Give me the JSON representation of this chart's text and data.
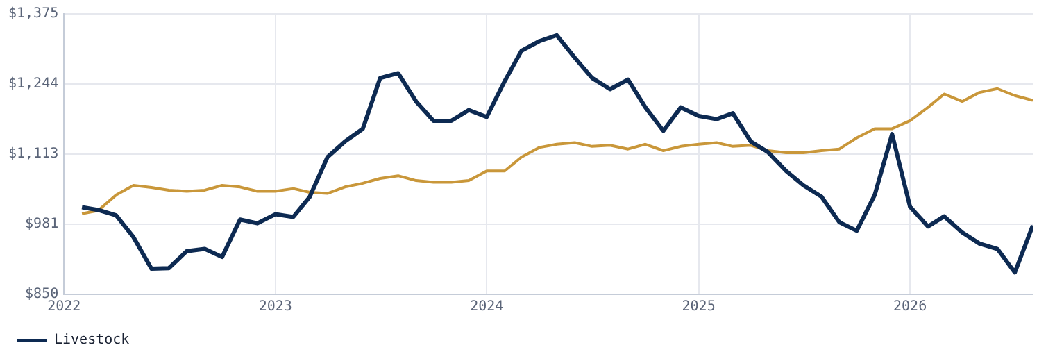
{
  "chart_data": {
    "type": "line",
    "x": [
      "2022-02",
      "2022-03",
      "2022-04",
      "2022-05",
      "2022-06",
      "2022-07",
      "2022-08",
      "2022-09",
      "2022-10",
      "2022-11",
      "2022-12",
      "2023-01",
      "2023-02",
      "2023-03",
      "2023-04",
      "2023-05",
      "2023-06",
      "2023-07",
      "2023-08",
      "2023-09",
      "2023-10",
      "2023-11",
      "2023-12",
      "2024-01",
      "2024-02",
      "2024-03",
      "2024-04",
      "2024-05",
      "2024-06",
      "2024-07",
      "2024-08",
      "2024-09",
      "2024-10",
      "2024-11",
      "2024-12",
      "2025-01",
      "2025-02",
      "2025-03",
      "2025-04",
      "2025-05",
      "2025-06",
      "2025-07",
      "2025-08",
      "2025-09",
      "2025-10",
      "2025-11",
      "2025-12",
      "2026-01",
      "2026-02",
      "2026-03",
      "2026-04",
      "2026-05",
      "2026-06",
      "2026-07",
      "2026-08"
    ],
    "series": [
      {
        "name": "Livestock",
        "color": "#0d2a52",
        "values": [
          1013,
          1008,
          998,
          957,
          898,
          899,
          931,
          935,
          920,
          990,
          983,
          1000,
          995,
          1032,
          1107,
          1136,
          1160,
          1255,
          1264,
          1211,
          1175,
          1175,
          1195,
          1182,
          1249,
          1306,
          1324,
          1335,
          1293,
          1255,
          1234,
          1252,
          1200,
          1156,
          1200,
          1184,
          1178,
          1189,
          1136,
          1116,
          1081,
          1054,
          1033,
          985,
          969,
          1036,
          1150,
          1014,
          977,
          996,
          966,
          945,
          935,
          891,
          979
        ]
      },
      {
        "color": "#c9973a",
        "values": [
          1001,
          1007,
          1036,
          1054,
          1050,
          1045,
          1043,
          1045,
          1054,
          1051,
          1043,
          1043,
          1048,
          1041,
          1039,
          1051,
          1058,
          1067,
          1072,
          1063,
          1060,
          1060,
          1063,
          1081,
          1081,
          1107,
          1125,
          1131,
          1134,
          1127,
          1129,
          1122,
          1131,
          1119,
          1127,
          1131,
          1134,
          1127,
          1129,
          1119,
          1115,
          1115,
          1119,
          1122,
          1143,
          1160,
          1160,
          1175,
          1200,
          1225,
          1211,
          1228,
          1235,
          1222,
          1213
        ]
      }
    ],
    "xlim": [
      "2022-01",
      "2026-08"
    ],
    "xticks": [
      "2022",
      "2023",
      "2024",
      "2025",
      "2026"
    ],
    "ylim": [
      850,
      1375
    ],
    "yticks": [
      {
        "value": 850,
        "label": "$850"
      },
      {
        "value": 981,
        "label": "$981"
      },
      {
        "value": 1113,
        "label": "$1,113"
      },
      {
        "value": 1244,
        "label": "$1,244"
      },
      {
        "value": 1375,
        "label": "$1,375"
      }
    ],
    "grid": true,
    "legend": "bottom left"
  }
}
